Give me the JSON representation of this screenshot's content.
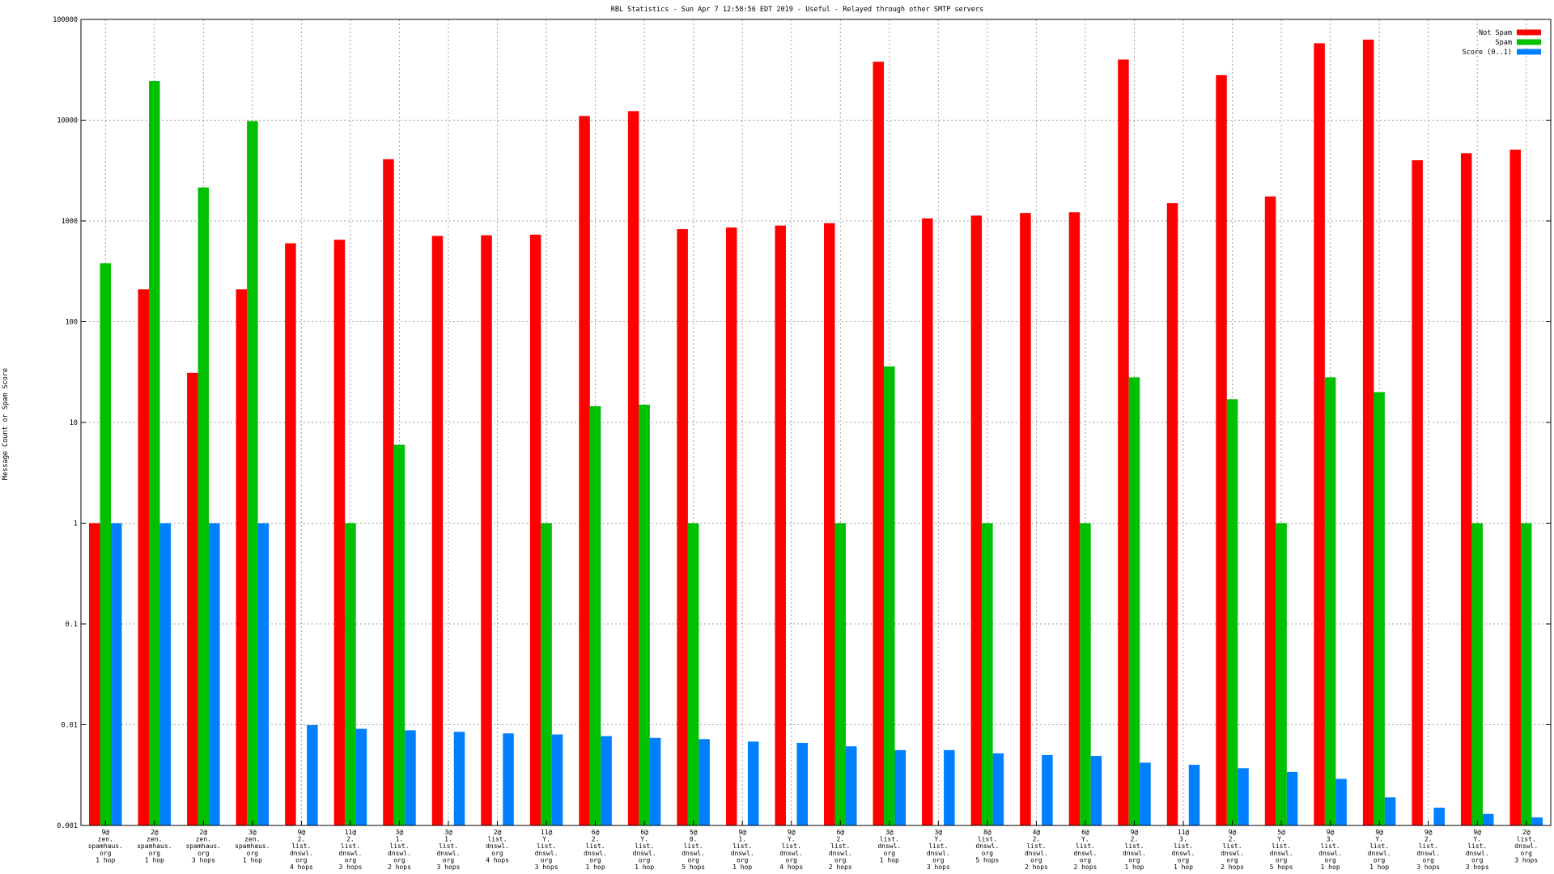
{
  "chart_data": {
    "type": "bar",
    "title": "RBL Statistics - Sun Apr  7 12:58:56 EDT 2019 - Useful - Relayed through other SMTP servers",
    "xlabel": "",
    "ylabel": "Message Count or Spam Score",
    "yscale": "log",
    "ylim": [
      0.001,
      100000
    ],
    "grid": true,
    "legend_position": "top-right",
    "yticks": [
      {
        "value": 0.001,
        "label": "0.001"
      },
      {
        "value": 0.01,
        "label": "0.01"
      },
      {
        "value": 0.1,
        "label": "0.1"
      },
      {
        "value": 1,
        "label": "1"
      },
      {
        "value": 10,
        "label": "10"
      },
      {
        "value": 100,
        "label": "100"
      },
      {
        "value": 1000,
        "label": "1000"
      },
      {
        "value": 10000,
        "label": "10000"
      },
      {
        "value": 100000,
        "label": "100000"
      }
    ],
    "categories": [
      [
        "9@",
        "zen.",
        "spamhaus.",
        "org",
        "1 hop"
      ],
      [
        "2@",
        "zen.",
        "spamhaus.",
        "org",
        "1 hop"
      ],
      [
        "2@",
        "zen.",
        "spamhaus.",
        "org",
        "3 hops"
      ],
      [
        "3@",
        "zen.",
        "spamhaus.",
        "org",
        "1 hop"
      ],
      [
        "9@",
        "2.",
        "list.",
        "dnswl.",
        "org",
        "4 hops"
      ],
      [
        "11@",
        "2.",
        "list.",
        "dnswl.",
        "org",
        "3 hops"
      ],
      [
        "3@",
        "1.",
        "list.",
        "dnswl.",
        "org",
        "2 hops"
      ],
      [
        "3@",
        "1.",
        "list.",
        "dnswl.",
        "org",
        "3 hops"
      ],
      [
        "2@",
        "list.",
        "dnswl.",
        "org",
        "4 hops"
      ],
      [
        "11@",
        "Y.",
        "list.",
        "dnswl.",
        "org",
        "3 hops"
      ],
      [
        "6@",
        "2.",
        "list.",
        "dnswl.",
        "org",
        "1 hop"
      ],
      [
        "6@",
        "Y.",
        "list.",
        "dnswl.",
        "org",
        "1 hop"
      ],
      [
        "5@",
        "0.",
        "list.",
        "dnswl.",
        "org",
        "5 hops"
      ],
      [
        "9@",
        "1.",
        "list.",
        "dnswl.",
        "org",
        "1 hop"
      ],
      [
        "9@",
        "Y.",
        "list.",
        "dnswl.",
        "org",
        "4 hops"
      ],
      [
        "6@",
        "2.",
        "list.",
        "dnswl.",
        "org",
        "2 hops"
      ],
      [
        "3@",
        "list.",
        "dnswl.",
        "org",
        "1 hop"
      ],
      [
        "3@",
        "Y.",
        "list.",
        "dnswl.",
        "org",
        "3 hops"
      ],
      [
        "8@",
        "list.",
        "dnswl.",
        "org",
        "5 hops"
      ],
      [
        "4@",
        "2.",
        "list.",
        "dnswl.",
        "org",
        "2 hops"
      ],
      [
        "6@",
        "Y.",
        "list.",
        "dnswl.",
        "org",
        "2 hops"
      ],
      [
        "9@",
        "2.",
        "list.",
        "dnswl.",
        "org",
        "1 hop"
      ],
      [
        "11@",
        "3.",
        "list.",
        "dnswl.",
        "org",
        "1 hop"
      ],
      [
        "9@",
        "2.",
        "list.",
        "dnswl.",
        "org",
        "2 hops"
      ],
      [
        "5@",
        "Y.",
        "list.",
        "dnswl.",
        "org",
        "5 hops"
      ],
      [
        "9@",
        "3.",
        "list.",
        "dnswl.",
        "org",
        "1 hop"
      ],
      [
        "9@",
        "Y.",
        "list.",
        "dnswl.",
        "org",
        "1 hop"
      ],
      [
        "9@",
        "2.",
        "list.",
        "dnswl.",
        "org",
        "3 hops"
      ],
      [
        "9@",
        "Y.",
        "list.",
        "dnswl.",
        "org",
        "3 hops"
      ],
      [
        "2@",
        "list.",
        "dnswl.",
        "org",
        "3 hops"
      ]
    ],
    "series": [
      {
        "name": "Not Spam",
        "color": "#ff0000",
        "values": [
          1,
          210,
          31,
          210,
          600,
          650,
          4100,
          710,
          720,
          730,
          11000,
          12300,
          830,
          860,
          900,
          950,
          38000,
          1060,
          1130,
          1200,
          1220,
          40000,
          1500,
          28000,
          1750,
          58000,
          63000,
          4000,
          4700,
          5100
        ]
      },
      {
        "name": "Spam",
        "color": "#00c000",
        "values": [
          380,
          24500,
          2150,
          9800,
          null,
          1,
          6,
          null,
          null,
          1,
          14.5,
          15,
          1,
          null,
          null,
          1,
          36,
          null,
          1,
          null,
          1,
          28,
          null,
          17,
          1,
          28,
          20,
          null,
          1,
          1
        ]
      },
      {
        "name": "Score (0..1)",
        "color": "#0080ff",
        "values": [
          1,
          1,
          1,
          1,
          0.0099,
          0.0091,
          0.0088,
          0.0085,
          0.0082,
          0.008,
          0.0077,
          0.0074,
          0.0072,
          0.0068,
          0.0066,
          0.0061,
          0.0056,
          0.0056,
          0.0052,
          0.005,
          0.0049,
          0.0042,
          0.004,
          0.0037,
          0.0034,
          0.0029,
          0.0019,
          0.0015,
          0.0013,
          0.0012
        ]
      }
    ]
  }
}
